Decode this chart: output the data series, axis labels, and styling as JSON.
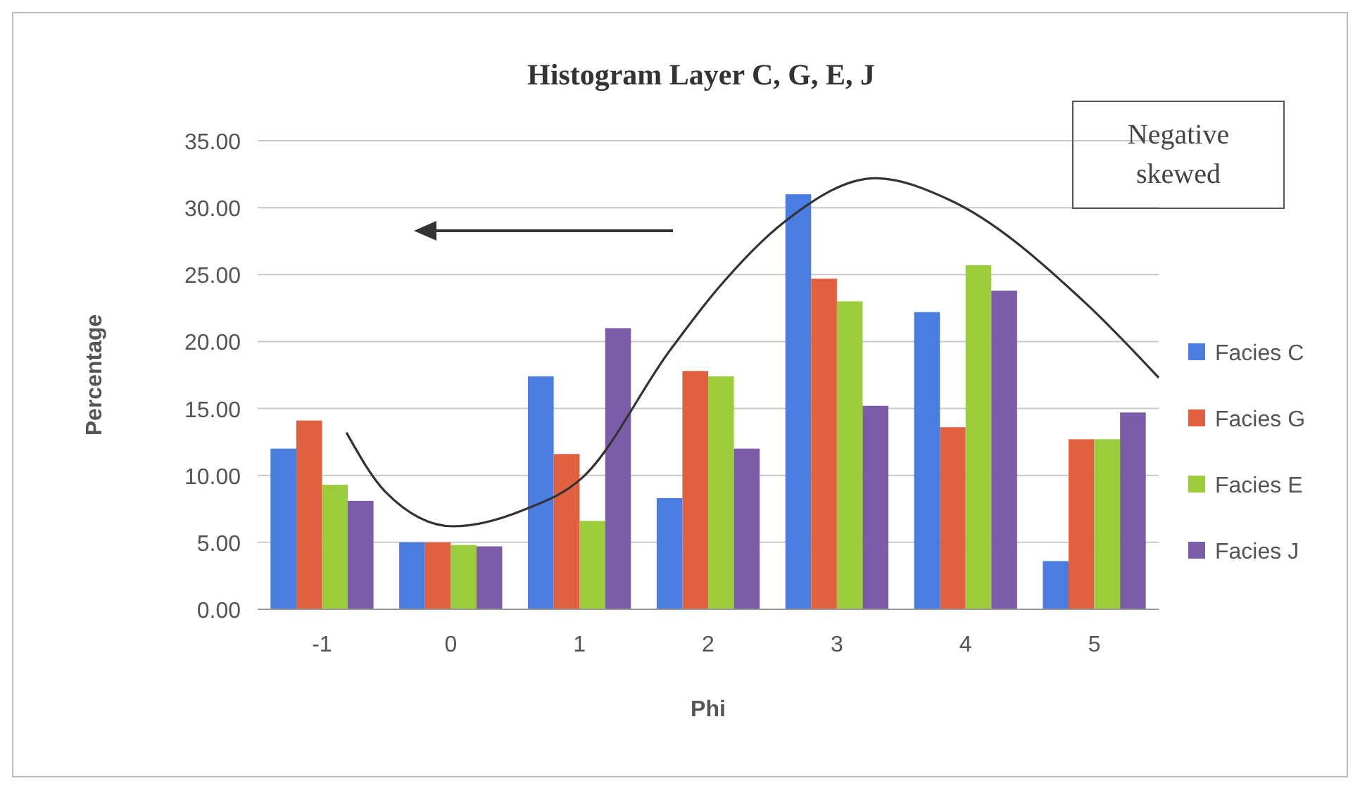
{
  "chart_data": {
    "type": "bar",
    "title": "Histogram Layer C, G, E, J",
    "xlabel": "Phi",
    "ylabel": "Percentage",
    "x": [
      -1,
      0,
      1,
      2,
      3,
      4,
      5
    ],
    "series": [
      {
        "name": "Facies C",
        "color": "#4a7de0",
        "values": [
          12.0,
          5.0,
          17.4,
          8.3,
          31.0,
          22.2,
          3.6
        ]
      },
      {
        "name": "Facies G",
        "color": "#e0603f",
        "values": [
          14.1,
          5.0,
          11.6,
          17.8,
          24.7,
          13.6,
          12.7
        ]
      },
      {
        "name": "Facies E",
        "color": "#9bcc3c",
        "values": [
          9.3,
          4.8,
          6.6,
          17.4,
          23.0,
          25.7,
          12.7
        ]
      },
      {
        "name": "Facies J",
        "color": "#7a5ca8",
        "values": [
          8.1,
          4.7,
          21.0,
          12.0,
          15.2,
          23.8,
          14.7
        ]
      },
      {
        "type": "line",
        "color": "#333333",
        "x": [
          -0.81,
          -0.51,
          0.02,
          0.56,
          1.03,
          1.7,
          2.07,
          2.6,
          3.3,
          3.87,
          4.94,
          5.5
        ],
        "values": [
          13.2,
          8.8,
          6.2,
          7.4,
          9.9,
          19.3,
          23.9,
          29.0,
          32.2,
          30.6,
          22.8,
          17.3
        ]
      }
    ],
    "xlim": [
      -1.5,
      5.5
    ],
    "xticks": [
      -1,
      0,
      1,
      2,
      3,
      4,
      5
    ],
    "ylim": [
      0,
      35
    ],
    "yticks": [
      {
        "value": 0,
        "label": "0.00"
      },
      {
        "value": 5,
        "label": "5.00"
      },
      {
        "value": 10,
        "label": "10.00"
      },
      {
        "value": 15,
        "label": "15.00"
      },
      {
        "value": 20,
        "label": "20.00"
      },
      {
        "value": 25,
        "label": "25.00"
      },
      {
        "value": 30,
        "label": "30.00"
      },
      {
        "value": 35,
        "label": "35.00"
      }
    ],
    "grid": "y",
    "legend": "right",
    "marker": "none",
    "annotations": [
      "Negative skewed"
    ]
  }
}
